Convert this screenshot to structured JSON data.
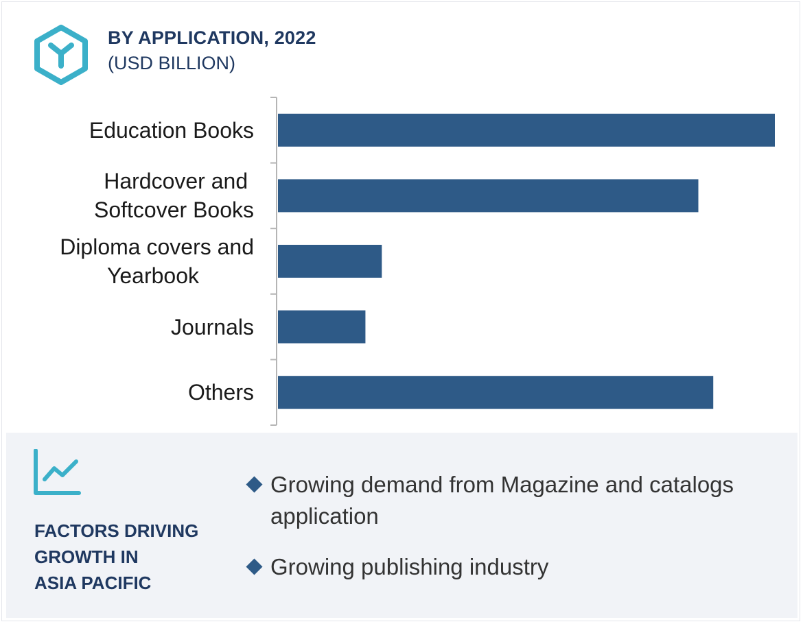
{
  "header": {
    "title": "BY APPLICATION, 2022",
    "subtitle": "(USD BILLION)",
    "icon": "hexagon-y-logo-icon"
  },
  "colors": {
    "bar": "#2e5a87",
    "accent": "#3bb0c9",
    "heading": "#1f3860",
    "panel": "#f1f3f7"
  },
  "chart_data": {
    "type": "bar",
    "orientation": "horizontal",
    "title": "BY APPLICATION, 2022",
    "subtitle": "(USD BILLION)",
    "categories": [
      "Education Books",
      "Hardcover and Softcover Books",
      "Diploma covers and Yearbook",
      "Journals",
      "Others"
    ],
    "category_lines": [
      [
        "Education Books"
      ],
      [
        "Hardcover and ",
        "Softcover Books"
      ],
      [
        "Diploma covers and",
        "Yearbook"
      ],
      [
        "Journals"
      ],
      [
        "Others"
      ]
    ],
    "values": [
      100,
      84.6,
      20.9,
      17.6,
      87.6
    ],
    "xlim": [
      0,
      100
    ],
    "grid": false,
    "xlabel": "",
    "ylabel": ""
  },
  "factors": {
    "icon": "trend-line-chart-icon",
    "title_lines": [
      "FACTORS DRIVING",
      "GROWTH IN",
      "ASIA PACIFIC"
    ],
    "bullets": [
      "Growing demand from Magazine and catalogs application",
      "Growing publishing industry"
    ]
  }
}
